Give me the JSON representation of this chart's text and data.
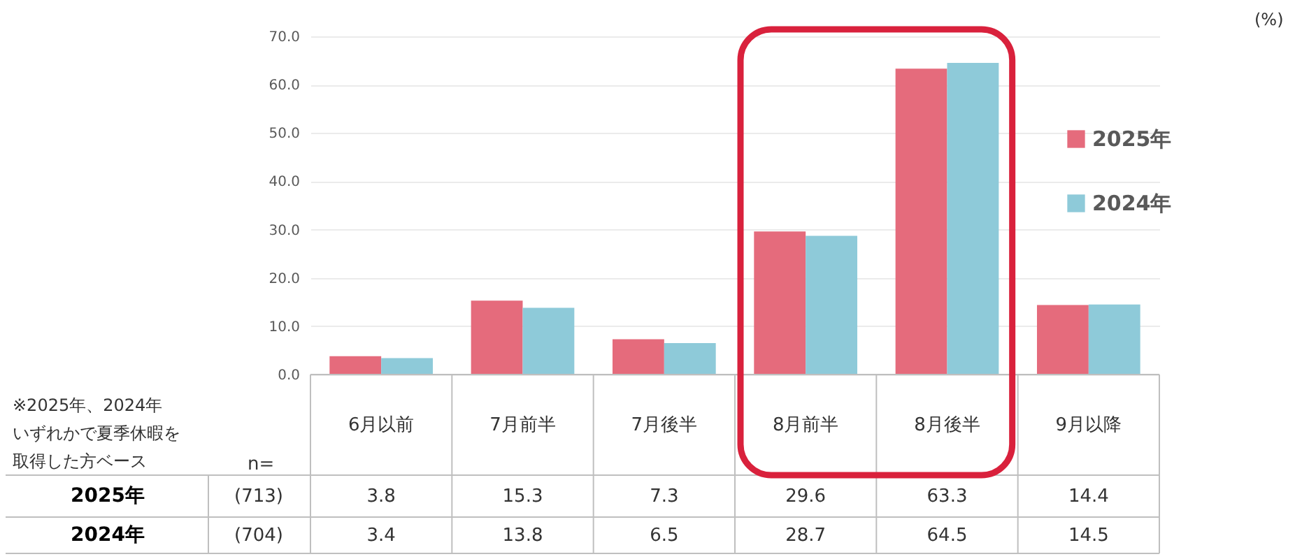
{
  "chart_data": {
    "type": "bar",
    "categories": [
      "6月以前",
      "7月前半",
      "7月後半",
      "8月前半",
      "8月後半",
      "9月以降"
    ],
    "series": [
      {
        "name": "2025年",
        "color": "#e56b7c",
        "values": [
          3.8,
          15.3,
          7.3,
          29.6,
          63.3,
          14.4
        ]
      },
      {
        "name": "2024年",
        "color": "#8ecad9",
        "values": [
          3.4,
          13.8,
          6.5,
          28.7,
          64.5,
          14.5
        ]
      }
    ],
    "ylim": [
      0,
      70
    ],
    "yticks": [
      {
        "value": 0,
        "label": "0.0"
      },
      {
        "value": 10,
        "label": "10.0"
      },
      {
        "value": 20,
        "label": "20.0"
      },
      {
        "value": 30,
        "label": "30.0"
      },
      {
        "value": 40,
        "label": "40.0"
      },
      {
        "value": 50,
        "label": "50.0"
      },
      {
        "value": 60,
        "label": "60.0"
      },
      {
        "value": 70,
        "label": "70.0"
      }
    ],
    "grid": "y",
    "legend": "right",
    "data_labels": true,
    "annotations": [
      "(%)",
      "※2025年、2024年",
      "いずれかで夏季休暇を",
      "取得した方ベース",
      "n=",
      "(713)",
      "(704)"
    ]
  }
}
